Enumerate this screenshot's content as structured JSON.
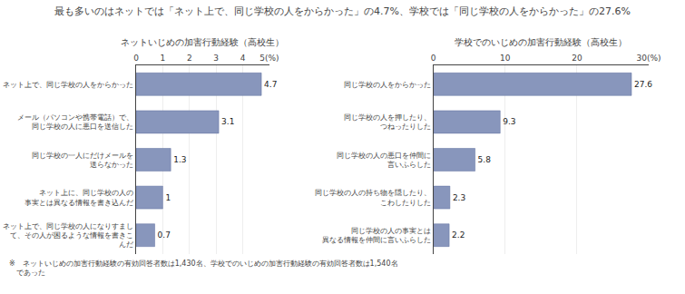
{
  "title": "最も多いのはネットでは「ネット上で、同じ学校の人をからかった」の4.7%、学校では「同じ学校の人をからかった」の27.6%",
  "annotations": [
    "※　ネットいじめの加害行動経験の有効回答者数は1,430名、学校でのいじめの加害行動経験の有効回答者数は1,540名\n　であった"
  ],
  "chart_data": [
    {
      "type": "bar",
      "orientation": "horizontal",
      "title": "ネットいじめの加害行動経験（高校生）",
      "categories": [
        "ネット上で、同じ学校の人をからかった",
        "メール（パソコンや携帯電話）で、\n同じ学校の人に悪口を送信した",
        "同じ学校の一人にだけメールを\n送らなかった",
        "ネット上に、同じ学校の人の\n事実とは異なる情報を書き込んだ",
        "ネット上で、同じ学校の人になりすまし\nて、その人が困るような情報を書きこ\nんだ"
      ],
      "values": [
        4.7,
        3.1,
        1.3,
        1.0,
        0.7
      ],
      "color": "#8896bc",
      "xlim": [
        0,
        5
      ],
      "xticks": [
        0,
        1,
        2,
        3,
        4,
        {
          "value": 5,
          "label": "5(%)"
        }
      ],
      "grid": true,
      "data_labels": true
    },
    {
      "type": "bar",
      "orientation": "horizontal",
      "title": "学校でのいじめの加害行動経験（高校生）",
      "categories": [
        "同じ学校の人をからかった",
        "同じ学校の人を押したり、\nつねったりした",
        "同じ学校の人の悪口を仲間に\n言いふらした",
        "同じ学校の人の持ち物を隠したり、\nこわしたりした",
        "同じ学校の人の事実とは\n異なる情報を仲間に言いふらした"
      ],
      "values": [
        27.6,
        9.3,
        5.8,
        2.3,
        2.2
      ],
      "color": "#8896bc",
      "xlim": [
        0,
        30
      ],
      "xticks": [
        0,
        10,
        20,
        {
          "value": 30,
          "label": "30(%)"
        }
      ],
      "grid": true,
      "data_labels": true
    }
  ]
}
